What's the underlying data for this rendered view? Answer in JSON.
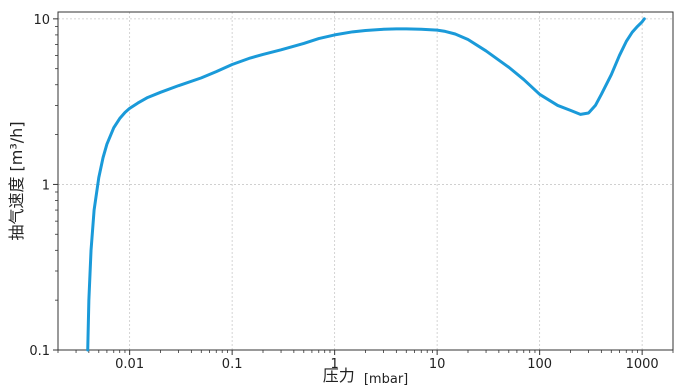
{
  "chart_data": {
    "type": "line",
    "title": "",
    "xlabel": "压力",
    "xlabel_unit": "[mbar]",
    "ylabel": "抽气速度 [m³/h]",
    "x_scale": "log",
    "y_scale": "log",
    "xlim": [
      0.002,
      2000
    ],
    "ylim": [
      0.1,
      11
    ],
    "grid": true,
    "legend": "none",
    "color": "#1a9ad9",
    "x_ticks": [
      {
        "value": 0.01,
        "label": "0.01"
      },
      {
        "value": 0.1,
        "label": "0.1"
      },
      {
        "value": 1,
        "label": "1"
      },
      {
        "value": 10,
        "label": "10"
      },
      {
        "value": 100,
        "label": "100"
      },
      {
        "value": 1000,
        "label": "1000"
      }
    ],
    "y_ticks": [
      {
        "value": 0.1,
        "label": "0.1"
      },
      {
        "value": 1,
        "label": "1"
      },
      {
        "value": 10,
        "label": "10"
      }
    ],
    "series": [
      {
        "x": [
          0.0039,
          0.004,
          0.0042,
          0.0045,
          0.005,
          0.0055,
          0.006,
          0.007,
          0.008,
          0.009,
          0.01,
          0.012,
          0.015,
          0.02,
          0.03,
          0.05,
          0.07,
          0.1,
          0.15,
          0.2,
          0.3,
          0.5,
          0.7,
          1,
          1.5,
          2,
          3,
          4,
          5,
          7,
          10,
          12,
          15,
          20,
          30,
          50,
          70,
          100,
          150,
          200,
          250,
          300,
          350,
          400,
          500,
          600,
          700,
          800,
          900,
          1000,
          1050
        ],
        "values": [
          0.1,
          0.2,
          0.4,
          0.7,
          1.1,
          1.45,
          1.75,
          2.2,
          2.5,
          2.72,
          2.88,
          3.1,
          3.35,
          3.6,
          3.95,
          4.4,
          4.8,
          5.3,
          5.8,
          6.1,
          6.5,
          7.1,
          7.6,
          8.0,
          8.35,
          8.5,
          8.65,
          8.7,
          8.7,
          8.65,
          8.55,
          8.4,
          8.1,
          7.5,
          6.4,
          5.1,
          4.3,
          3.5,
          3.0,
          2.8,
          2.65,
          2.7,
          3.0,
          3.5,
          4.6,
          6.0,
          7.3,
          8.3,
          9.0,
          9.6,
          10.0
        ]
      }
    ]
  }
}
